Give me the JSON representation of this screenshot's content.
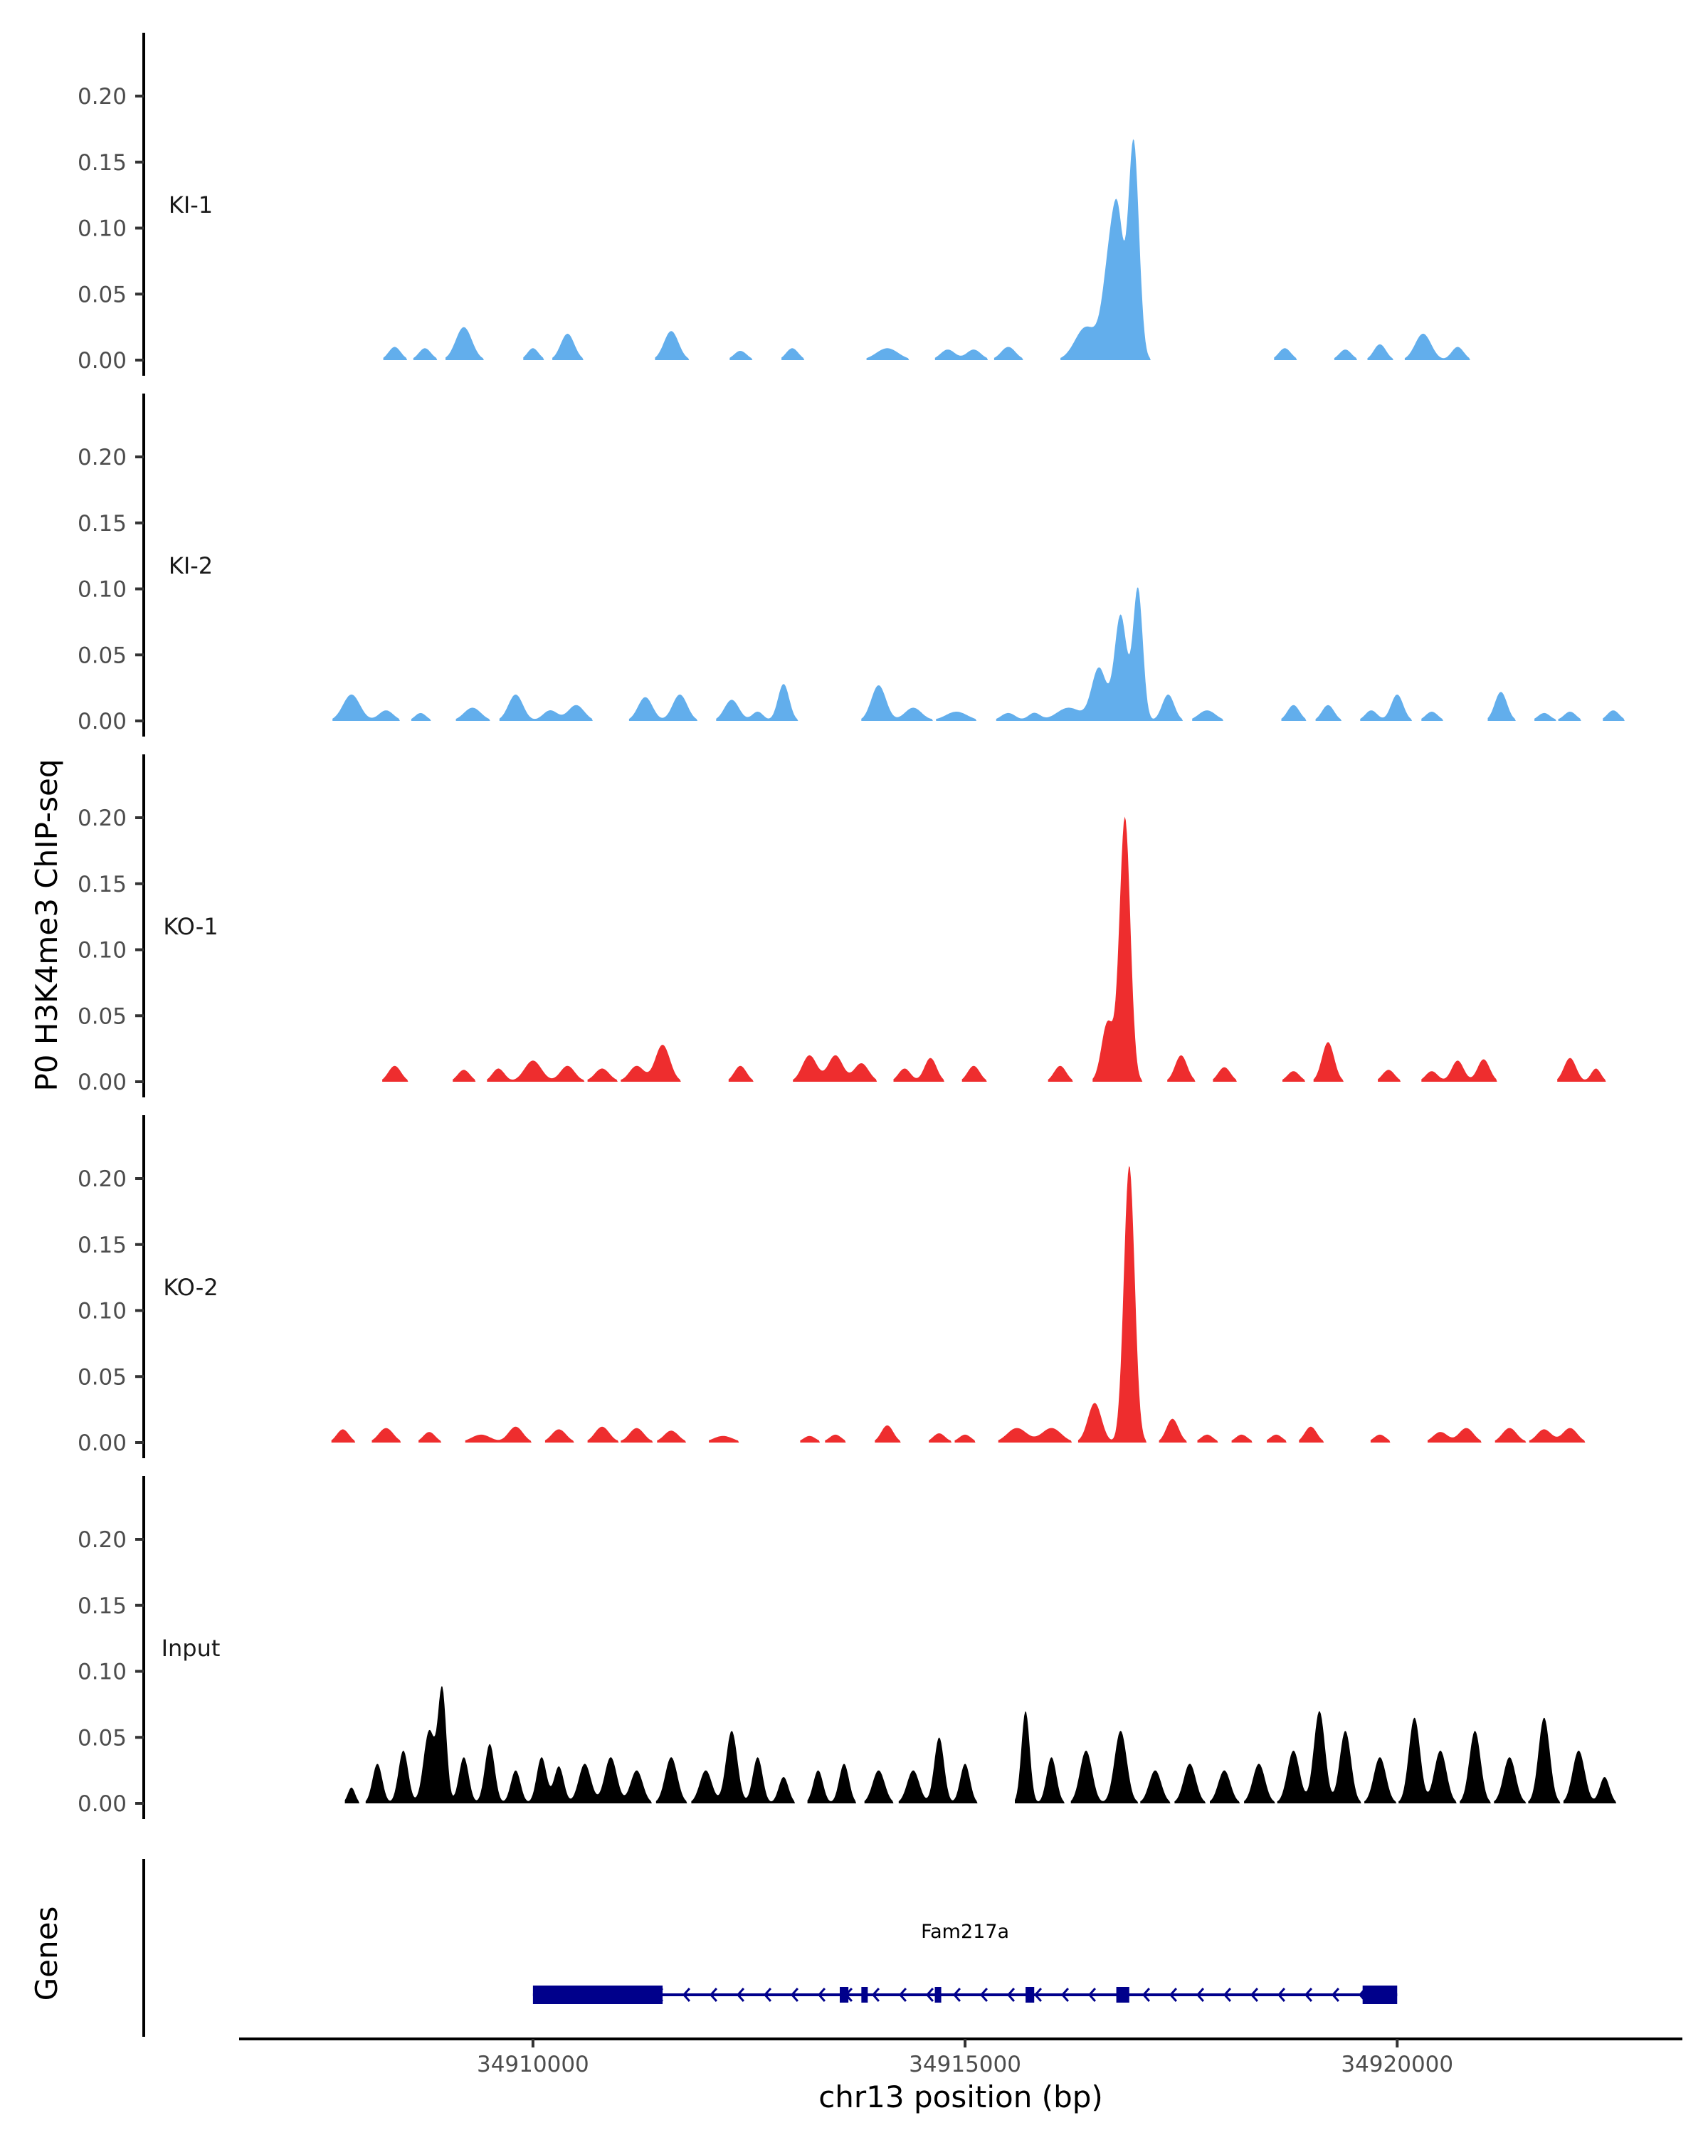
{
  "chart_data": {
    "type": "area",
    "ylabel": "P0 H3K4me3 ChIP-seq",
    "xlabel": "chr13 position (bp)",
    "genes_label": "Genes",
    "xlim": [
      34906600,
      34923300
    ],
    "ylim": [
      0,
      0.25
    ],
    "y_ticks": [
      0.0,
      0.05,
      0.1,
      0.15,
      0.2
    ],
    "y_tick_labels": [
      "0.00",
      "0.05",
      "0.10",
      "0.15",
      "0.20"
    ],
    "x_ticks": [
      34910000,
      34915000,
      34920000
    ],
    "x_tick_labels": [
      "34910000",
      "34915000",
      "34920000"
    ],
    "tracks": [
      {
        "name": "KI-1",
        "color": "#62AEEC",
        "peaks": [
          [
            34908400,
            0.01,
            250
          ],
          [
            34908750,
            0.009,
            250
          ],
          [
            34909200,
            0.025,
            330
          ],
          [
            34910000,
            0.009,
            230
          ],
          [
            34910400,
            0.02,
            280
          ],
          [
            34911600,
            0.022,
            300
          ],
          [
            34912400,
            0.007,
            260
          ],
          [
            34913000,
            0.009,
            250
          ],
          [
            34914100,
            0.009,
            450
          ],
          [
            34914800,
            0.008,
            300
          ],
          [
            34915100,
            0.008,
            300
          ],
          [
            34915500,
            0.01,
            300
          ],
          [
            34916400,
            0.025,
            450
          ],
          [
            34916700,
            0.09,
            320
          ],
          [
            34916950,
            0.165,
            220
          ],
          [
            34916780,
            0.05,
            200
          ],
          [
            34918700,
            0.009,
            250
          ],
          [
            34919400,
            0.008,
            250
          ],
          [
            34919800,
            0.012,
            250
          ],
          [
            34920300,
            0.02,
            330
          ],
          [
            34920700,
            0.01,
            250
          ]
        ]
      },
      {
        "name": "KI-2",
        "color": "#62AEEC",
        "peaks": [
          [
            34907900,
            0.02,
            350
          ],
          [
            34908300,
            0.008,
            300
          ],
          [
            34908700,
            0.006,
            230
          ],
          [
            34909300,
            0.01,
            350
          ],
          [
            34909800,
            0.02,
            300
          ],
          [
            34910200,
            0.008,
            300
          ],
          [
            34910500,
            0.012,
            330
          ],
          [
            34911300,
            0.018,
            300
          ],
          [
            34911700,
            0.02,
            300
          ],
          [
            34912300,
            0.016,
            300
          ],
          [
            34912600,
            0.007,
            230
          ],
          [
            34912900,
            0.028,
            230
          ],
          [
            34914000,
            0.027,
            300
          ],
          [
            34914400,
            0.01,
            350
          ],
          [
            34914900,
            0.007,
            450
          ],
          [
            34915500,
            0.006,
            300
          ],
          [
            34915800,
            0.006,
            250
          ],
          [
            34916200,
            0.01,
            500
          ],
          [
            34916550,
            0.04,
            300
          ],
          [
            34916800,
            0.08,
            250
          ],
          [
            34917000,
            0.1,
            200
          ],
          [
            34917350,
            0.02,
            250
          ],
          [
            34917800,
            0.008,
            350
          ],
          [
            34918800,
            0.012,
            250
          ],
          [
            34919200,
            0.012,
            250
          ],
          [
            34919700,
            0.008,
            250
          ],
          [
            34920000,
            0.02,
            250
          ],
          [
            34920400,
            0.007,
            250
          ],
          [
            34921200,
            0.022,
            250
          ],
          [
            34921700,
            0.006,
            250
          ],
          [
            34922000,
            0.007,
            250
          ],
          [
            34922500,
            0.008,
            250
          ]
        ]
      },
      {
        "name": "KO-1",
        "color": "#EE2D2E",
        "peaks": [
          [
            34908400,
            0.012,
            260
          ],
          [
            34909200,
            0.009,
            250
          ],
          [
            34909600,
            0.01,
            250
          ],
          [
            34910000,
            0.016,
            350
          ],
          [
            34910400,
            0.012,
            300
          ],
          [
            34910800,
            0.01,
            300
          ],
          [
            34911200,
            0.012,
            300
          ],
          [
            34911500,
            0.028,
            300
          ],
          [
            34912400,
            0.012,
            250
          ],
          [
            34913200,
            0.02,
            300
          ],
          [
            34913500,
            0.02,
            300
          ],
          [
            34913800,
            0.014,
            300
          ],
          [
            34914300,
            0.01,
            250
          ],
          [
            34914600,
            0.018,
            250
          ],
          [
            34915100,
            0.012,
            250
          ],
          [
            34916100,
            0.012,
            250
          ],
          [
            34916650,
            0.045,
            250
          ],
          [
            34916850,
            0.2,
            220
          ],
          [
            34917500,
            0.02,
            250
          ],
          [
            34918000,
            0.011,
            250
          ],
          [
            34918800,
            0.008,
            250
          ],
          [
            34919200,
            0.03,
            250
          ],
          [
            34919900,
            0.009,
            250
          ],
          [
            34920400,
            0.008,
            250
          ],
          [
            34920700,
            0.016,
            250
          ],
          [
            34921000,
            0.017,
            250
          ],
          [
            34922000,
            0.018,
            250
          ],
          [
            34922300,
            0.01,
            200
          ]
        ]
      },
      {
        "name": "KO-2",
        "color": "#EE2D2E",
        "peaks": [
          [
            34907800,
            0.01,
            250
          ],
          [
            34908300,
            0.011,
            300
          ],
          [
            34908800,
            0.008,
            250
          ],
          [
            34909400,
            0.006,
            400
          ],
          [
            34909800,
            0.012,
            300
          ],
          [
            34910300,
            0.01,
            300
          ],
          [
            34910800,
            0.012,
            300
          ],
          [
            34911200,
            0.011,
            300
          ],
          [
            34911600,
            0.009,
            300
          ],
          [
            34912200,
            0.005,
            400
          ],
          [
            34913200,
            0.005,
            250
          ],
          [
            34913500,
            0.006,
            250
          ],
          [
            34914100,
            0.013,
            250
          ],
          [
            34914700,
            0.007,
            250
          ],
          [
            34915000,
            0.006,
            250
          ],
          [
            34915600,
            0.011,
            400
          ],
          [
            34916000,
            0.011,
            400
          ],
          [
            34916500,
            0.03,
            280
          ],
          [
            34916900,
            0.21,
            220
          ],
          [
            34917400,
            0.018,
            250
          ],
          [
            34917800,
            0.006,
            250
          ],
          [
            34918200,
            0.006,
            250
          ],
          [
            34918600,
            0.006,
            250
          ],
          [
            34919000,
            0.012,
            250
          ],
          [
            34919800,
            0.006,
            250
          ],
          [
            34920500,
            0.008,
            300
          ],
          [
            34920800,
            0.011,
            300
          ],
          [
            34921300,
            0.011,
            300
          ],
          [
            34921700,
            0.01,
            300
          ],
          [
            34922000,
            0.011,
            300
          ]
        ]
      },
      {
        "name": "Input",
        "color": "#000000",
        "peaks": [
          [
            34907900,
            0.012,
            150
          ],
          [
            34908200,
            0.03,
            200
          ],
          [
            34908500,
            0.04,
            200
          ],
          [
            34908800,
            0.055,
            230
          ],
          [
            34908950,
            0.085,
            170
          ],
          [
            34909200,
            0.035,
            200
          ],
          [
            34909500,
            0.045,
            200
          ],
          [
            34909800,
            0.025,
            200
          ],
          [
            34910100,
            0.035,
            200
          ],
          [
            34910300,
            0.028,
            200
          ],
          [
            34910600,
            0.03,
            250
          ],
          [
            34910900,
            0.035,
            250
          ],
          [
            34911200,
            0.025,
            250
          ],
          [
            34911600,
            0.035,
            250
          ],
          [
            34912000,
            0.025,
            250
          ],
          [
            34912300,
            0.055,
            230
          ],
          [
            34912600,
            0.035,
            200
          ],
          [
            34912900,
            0.02,
            200
          ],
          [
            34913300,
            0.025,
            200
          ],
          [
            34913600,
            0.03,
            200
          ],
          [
            34914000,
            0.025,
            250
          ],
          [
            34914400,
            0.025,
            250
          ],
          [
            34914700,
            0.05,
            200
          ],
          [
            34915000,
            0.03,
            200
          ],
          [
            34915700,
            0.07,
            170
          ],
          [
            34916000,
            0.035,
            200
          ],
          [
            34916400,
            0.04,
            250
          ],
          [
            34916800,
            0.055,
            250
          ],
          [
            34917200,
            0.025,
            250
          ],
          [
            34917600,
            0.03,
            250
          ],
          [
            34918000,
            0.025,
            250
          ],
          [
            34918400,
            0.03,
            250
          ],
          [
            34918800,
            0.04,
            250
          ],
          [
            34919100,
            0.07,
            230
          ],
          [
            34919400,
            0.055,
            230
          ],
          [
            34919800,
            0.035,
            250
          ],
          [
            34920200,
            0.065,
            230
          ],
          [
            34920500,
            0.04,
            250
          ],
          [
            34920900,
            0.055,
            230
          ],
          [
            34921300,
            0.035,
            250
          ],
          [
            34921700,
            0.065,
            230
          ],
          [
            34922100,
            0.04,
            250
          ],
          [
            34922400,
            0.02,
            200
          ]
        ]
      }
    ],
    "gene": {
      "name": "Fam217a",
      "start": 34910000,
      "end": 34920000,
      "color": "#00008B",
      "exons": [
        [
          34910000,
          34911500
        ],
        [
          34913550,
          34913650
        ],
        [
          34913800,
          34913850
        ],
        [
          34914650,
          34914700
        ],
        [
          34915700,
          34915800
        ],
        [
          34916750,
          34916900
        ],
        [
          34919600,
          34920000
        ]
      ]
    }
  }
}
